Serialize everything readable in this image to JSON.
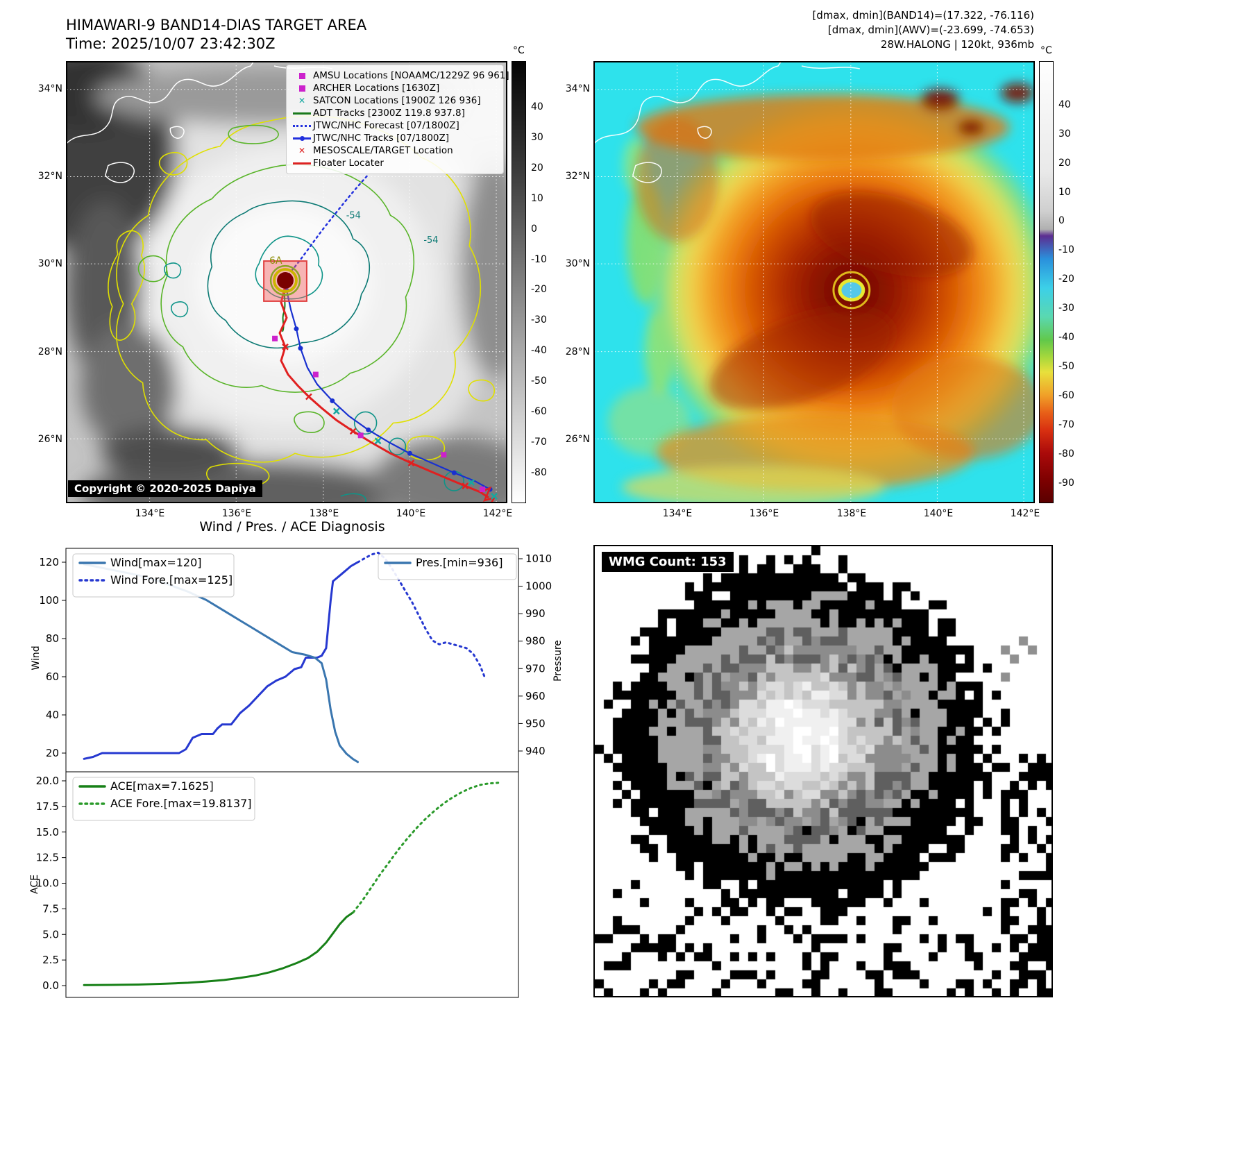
{
  "header": {
    "title": "HIMAWARI-9 BAND14-DIAS TARGET AREA",
    "time": "Time: 2025/10/07 23:42:30Z",
    "band14_stats": "[dmax, dmin](BAND14)=(17.322, -76.116)",
    "awv_stats": "[dmax, dmin](AWV)=(-23.699, -74.653)",
    "storm_info": "28W.HALONG | 120kt, 936mb"
  },
  "band14_map": {
    "lat_ticks": [
      "34°N",
      "32°N",
      "30°N",
      "28°N",
      "26°N"
    ],
    "lon_ticks": [
      "134°E",
      "136°E",
      "138°E",
      "140°E",
      "142°E"
    ],
    "colorbar_unit": "°C",
    "colorbar_ticks": [
      "40",
      "30",
      "20",
      "10",
      "0",
      "-10",
      "-20",
      "-30",
      "-40",
      "-50",
      "-60",
      "-70",
      "-80"
    ],
    "contour_label": "-54",
    "center_label": "6A",
    "copyright": "Copyright © 2020-2025 Dapiya",
    "legend": [
      {
        "label": "AMSU Locations [NOAAMC/1229Z 96 961]",
        "marker": "square",
        "color": "#cc22cc"
      },
      {
        "label": "ARCHER Locations [1630Z]",
        "marker": "square",
        "color": "#cc22cc"
      },
      {
        "label": "SATCON Locations [1900Z 126 936]",
        "marker": "x",
        "color": "#15a8a0"
      },
      {
        "label": "ADT Tracks [2300Z 119.8 937.8]",
        "marker": "line",
        "color": "#1a7a1a"
      },
      {
        "label": "JTWC/NHC Forecast [07/1800Z]",
        "marker": "dotted",
        "color": "#2230dd"
      },
      {
        "label": "JTWC/NHC Tracks [07/1800Z]",
        "marker": "line-dot",
        "color": "#2230dd"
      },
      {
        "label": "MESOSCALE/TARGET Location",
        "marker": "x",
        "color": "#dd2222"
      },
      {
        "label": "Floater Locater",
        "marker": "line",
        "color": "#dd2222"
      }
    ]
  },
  "awv_map": {
    "lat_ticks": [
      "34°N",
      "32°N",
      "30°N",
      "28°N",
      "26°N"
    ],
    "lon_ticks": [
      "134°E",
      "136°E",
      "138°E",
      "140°E",
      "142°E"
    ],
    "colorbar_unit": "°C",
    "colorbar_ticks": [
      "40",
      "30",
      "20",
      "10",
      "0",
      "-10",
      "-20",
      "-30",
      "-40",
      "-50",
      "-60",
      "-70",
      "-80",
      "-90"
    ]
  },
  "wmg": {
    "label": "WMG Count: 153"
  },
  "chart_data": [
    {
      "type": "line",
      "title": "Wind / Pres. / ACE Diagnosis",
      "ylabel_left": "Wind",
      "ylabel_right": "Pressure",
      "yticks_left": [
        20,
        40,
        60,
        80,
        100,
        120
      ],
      "yticks_right": [
        940,
        950,
        960,
        970,
        980,
        990,
        1000,
        1010
      ],
      "ylim_left": [
        10,
        127
      ],
      "ylim_right": [
        936,
        1012
      ],
      "legend_left": [
        {
          "label": "Wind[max=120]",
          "style": "solid",
          "color": "#3a76af"
        },
        {
          "label": "Wind Fore.[max=125]",
          "style": "dotted",
          "color": "#2638d0"
        }
      ],
      "legend_right": [
        {
          "label": "Pres.[min=936]",
          "style": "solid",
          "color": "#3a76af"
        }
      ],
      "series": [
        {
          "name": "Wind",
          "axis": "left",
          "style": "solid",
          "color": "#2638d0",
          "points": [
            [
              0.04,
              17
            ],
            [
              0.06,
              18
            ],
            [
              0.08,
              20
            ],
            [
              0.25,
              20
            ],
            [
              0.265,
              22
            ],
            [
              0.28,
              28
            ],
            [
              0.3,
              30
            ],
            [
              0.325,
              30
            ],
            [
              0.335,
              33
            ],
            [
              0.345,
              35
            ],
            [
              0.365,
              35
            ],
            [
              0.385,
              41
            ],
            [
              0.405,
              45
            ],
            [
              0.425,
              50
            ],
            [
              0.445,
              55
            ],
            [
              0.465,
              58
            ],
            [
              0.485,
              60
            ],
            [
              0.505,
              64
            ],
            [
              0.52,
              65
            ],
            [
              0.53,
              70
            ],
            [
              0.555,
              70
            ],
            [
              0.565,
              71
            ],
            [
              0.575,
              75
            ],
            [
              0.585,
              100
            ],
            [
              0.59,
              110
            ],
            [
              0.605,
              113
            ],
            [
              0.615,
              115
            ],
            [
              0.63,
              118
            ],
            [
              0.645,
              120
            ]
          ]
        },
        {
          "name": "Wind Fore.",
          "axis": "left",
          "style": "dotted",
          "color": "#2638d0",
          "points": [
            [
              0.645,
              120
            ],
            [
              0.66,
              122
            ],
            [
              0.675,
              124
            ],
            [
              0.69,
              125
            ],
            [
              0.705,
              122
            ],
            [
              0.72,
              117
            ],
            [
              0.735,
              111
            ],
            [
              0.75,
              105
            ],
            [
              0.765,
              99
            ],
            [
              0.78,
              92
            ],
            [
              0.795,
              85
            ],
            [
              0.81,
              79
            ],
            [
              0.825,
              77
            ],
            [
              0.84,
              78
            ],
            [
              0.855,
              77
            ],
            [
              0.87,
              76
            ],
            [
              0.885,
              75
            ],
            [
              0.9,
              72
            ],
            [
              0.915,
              66
            ],
            [
              0.925,
              60
            ]
          ]
        },
        {
          "name": "Pres.",
          "axis": "right",
          "style": "solid",
          "color": "#3a76af",
          "points": [
            [
              0.04,
              1008
            ],
            [
              0.1,
              1006
            ],
            [
              0.16,
              1004
            ],
            [
              0.22,
              1001
            ],
            [
              0.27,
              998
            ],
            [
              0.31,
              995
            ],
            [
              0.35,
              991
            ],
            [
              0.38,
              988
            ],
            [
              0.41,
              985
            ],
            [
              0.44,
              982
            ],
            [
              0.47,
              979
            ],
            [
              0.5,
              976
            ],
            [
              0.53,
              975
            ],
            [
              0.55,
              974
            ],
            [
              0.565,
              972
            ],
            [
              0.575,
              966
            ],
            [
              0.585,
              955
            ],
            [
              0.595,
              947
            ],
            [
              0.605,
              942
            ],
            [
              0.62,
              939
            ],
            [
              0.635,
              937
            ],
            [
              0.645,
              936
            ]
          ]
        }
      ]
    },
    {
      "type": "line",
      "ylabel_left": "ACE",
      "yticks_left": [
        0.0,
        2.5,
        5.0,
        7.5,
        10.0,
        12.5,
        15.0,
        17.5,
        20.0
      ],
      "ylim_left": [
        -1,
        21
      ],
      "legend_left": [
        {
          "label": "ACE[max=7.1625]",
          "style": "solid",
          "color": "#178017"
        },
        {
          "label": "ACE Fore.[max=19.8137]",
          "style": "dotted",
          "color": "#2a9a2a"
        }
      ],
      "series": [
        {
          "name": "ACE",
          "axis": "left",
          "style": "solid",
          "color": "#178017",
          "points": [
            [
              0.04,
              0.05
            ],
            [
              0.1,
              0.07
            ],
            [
              0.16,
              0.1
            ],
            [
              0.22,
              0.18
            ],
            [
              0.27,
              0.28
            ],
            [
              0.31,
              0.4
            ],
            [
              0.35,
              0.55
            ],
            [
              0.385,
              0.75
            ],
            [
              0.42,
              1.0
            ],
            [
              0.45,
              1.3
            ],
            [
              0.48,
              1.7
            ],
            [
              0.51,
              2.2
            ],
            [
              0.535,
              2.7
            ],
            [
              0.555,
              3.3
            ],
            [
              0.575,
              4.2
            ],
            [
              0.59,
              5.1
            ],
            [
              0.605,
              6.0
            ],
            [
              0.62,
              6.7
            ],
            [
              0.635,
              7.16
            ]
          ]
        },
        {
          "name": "ACE Fore.",
          "axis": "left",
          "style": "dotted",
          "color": "#2a9a2a",
          "points": [
            [
              0.635,
              7.16
            ],
            [
              0.655,
              8.3
            ],
            [
              0.675,
              9.6
            ],
            [
              0.695,
              10.9
            ],
            [
              0.715,
              12.1
            ],
            [
              0.735,
              13.3
            ],
            [
              0.755,
              14.4
            ],
            [
              0.775,
              15.4
            ],
            [
              0.795,
              16.3
            ],
            [
              0.815,
              17.1
            ],
            [
              0.835,
              17.8
            ],
            [
              0.855,
              18.4
            ],
            [
              0.875,
              18.9
            ],
            [
              0.895,
              19.3
            ],
            [
              0.915,
              19.6
            ],
            [
              0.935,
              19.75
            ],
            [
              0.955,
              19.81
            ]
          ]
        }
      ]
    }
  ]
}
